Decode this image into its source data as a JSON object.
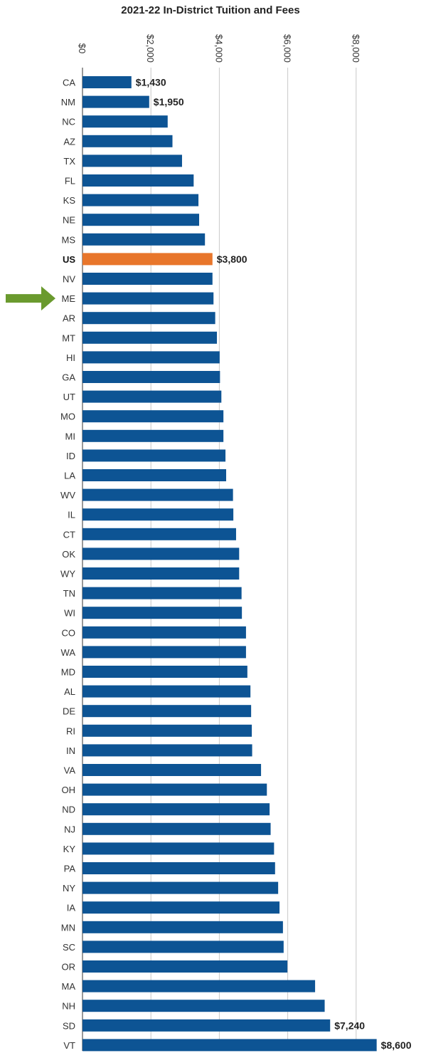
{
  "chart_data": {
    "type": "bar",
    "orientation": "horizontal",
    "title": "2021-22 In-District Tuition and Fees",
    "xlabel": "",
    "ylabel": "",
    "xlim": [
      0,
      8800
    ],
    "ticks": [
      {
        "value": 0,
        "label": "$0"
      },
      {
        "value": 2000,
        "label": "$2,000"
      },
      {
        "value": 4000,
        "label": "$4,000"
      },
      {
        "value": 6000,
        "label": "$6,000"
      },
      {
        "value": 8000,
        "label": "$8,000"
      }
    ],
    "grid": true,
    "categories": [
      "CA",
      "NM",
      "NC",
      "AZ",
      "TX",
      "FL",
      "KS",
      "NE",
      "MS",
      "US",
      "NV",
      "ME",
      "AR",
      "MT",
      "HI",
      "GA",
      "UT",
      "MO",
      "MI",
      "ID",
      "LA",
      "WV",
      "IL",
      "CT",
      "OK",
      "WY",
      "TN",
      "WI",
      "CO",
      "WA",
      "MD",
      "AL",
      "DE",
      "RI",
      "IN",
      "VA",
      "OH",
      "ND",
      "NJ",
      "KY",
      "PA",
      "NY",
      "IA",
      "MN",
      "SC",
      "OR",
      "MA",
      "NH",
      "SD",
      "VT"
    ],
    "values": [
      1430,
      1950,
      2490,
      2630,
      2910,
      3250,
      3390,
      3410,
      3580,
      3800,
      3800,
      3830,
      3880,
      3930,
      4010,
      4020,
      4060,
      4120,
      4120,
      4180,
      4200,
      4400,
      4410,
      4490,
      4580,
      4580,
      4650,
      4660,
      4780,
      4780,
      4820,
      4910,
      4930,
      4950,
      4960,
      5220,
      5390,
      5470,
      5500,
      5600,
      5630,
      5720,
      5760,
      5860,
      5880,
      5990,
      6800,
      7080,
      7240,
      8600
    ],
    "value_labels": {
      "CA": "$1,430",
      "NM": "$1,950",
      "US": "$3,800",
      "SD": "$7,240",
      "VT": "$8,600"
    },
    "highlight": "US",
    "marker": {
      "target": "ME",
      "icon": "arrow-right-icon"
    },
    "colors": {
      "bar": "#0d5494",
      "highlight": "#e8762b",
      "arrow": "#6a9a2e",
      "grid": "#c8c8c8"
    }
  }
}
